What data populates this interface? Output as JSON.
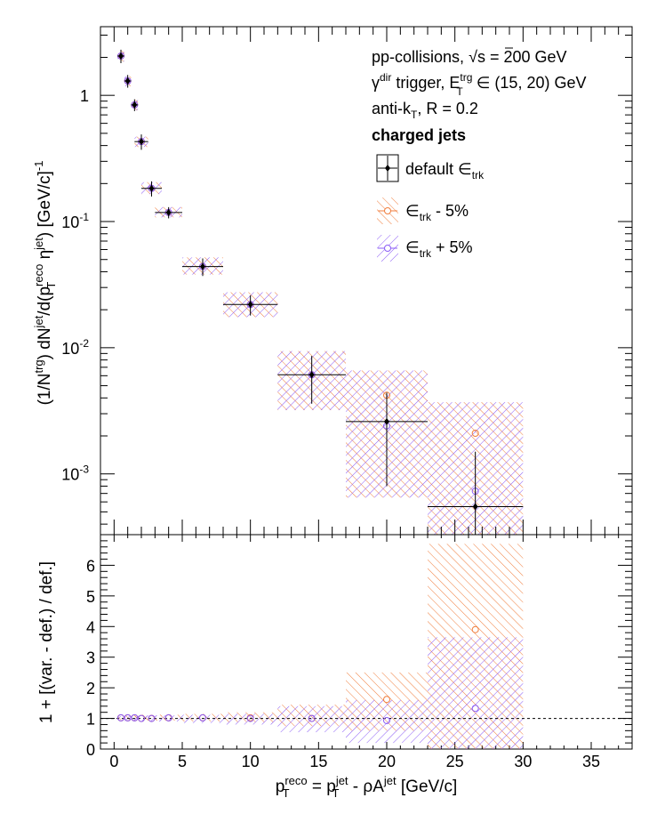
{
  "figure": {
    "info_lines": [
      "pp-collisions,",
      "= 200 GeV"
    ],
    "trigger_line": {
      "gamma": "γ",
      "sup_dir": "dir",
      "mid": " trigger, E",
      "sup_trg": "trg",
      "sub_T": "T",
      "rest": " ∈ (15, 20) GeV"
    },
    "algo_line": {
      "pre": "anti-k",
      "sub_T": "T",
      "rest": ", R = 0.2"
    },
    "sqrt_s_symbol": "√s",
    "jets_label": "charged jets",
    "legend": [
      {
        "label_main": "default ∈",
        "label_sub": "trk",
        "label_tail": "",
        "color": "#000000"
      },
      {
        "label_main": "∈",
        "label_sub": "trk",
        "label_tail": " - 5%",
        "color": "#f07d3c"
      },
      {
        "label_main": "∈",
        "label_sub": "trk",
        "label_tail": " + 5%",
        "color": "#8b5cf6"
      }
    ],
    "top_ylabel": "(1/N^trg) dN^jet/d(p_T^reco η^jet) [GeV/c]^-1",
    "bottom_ylabel": "1 + [(var. - def.) / def.]",
    "xlabel": "p_T^reco = p_T^jet - ρA^jet [GeV/c]"
  },
  "chart_data": [
    {
      "type": "scatter",
      "panel": "top",
      "yscale": "log",
      "xlim": [
        -1,
        38
      ],
      "ylim": [
        0.00033,
        3.5
      ],
      "y_tick_labels": [
        "10^-3",
        "10^-2",
        "10^-1",
        "1"
      ],
      "x_tick_labels": [
        "0",
        "5",
        "10",
        "15",
        "20",
        "25",
        "30",
        "35"
      ],
      "bins": [
        {
          "x": 0.5,
          "xerr": 0.25,
          "y": 2.05,
          "yerr": 0.25,
          "band_lo": 1.85,
          "band_hi": 2.25
        },
        {
          "x": 1.0,
          "xerr": 0.25,
          "y": 1.3,
          "yerr": 0.15,
          "band_lo": 1.18,
          "band_hi": 1.42
        },
        {
          "x": 1.5,
          "xerr": 0.25,
          "y": 0.84,
          "yerr": 0.09,
          "band_lo": 0.76,
          "band_hi": 0.92
        },
        {
          "x": 2.0,
          "xerr": 0.5,
          "y": 0.43,
          "yerr": 0.06,
          "band_lo": 0.39,
          "band_hi": 0.47
        },
        {
          "x": 2.75,
          "xerr": 0.75,
          "y": 0.183,
          "yerr": 0.025,
          "band_lo": 0.165,
          "band_hi": 0.205
        },
        {
          "x": 4.0,
          "xerr": 1.0,
          "y": 0.118,
          "yerr": 0.012,
          "band_lo": 0.108,
          "band_hi": 0.13
        },
        {
          "x": 6.5,
          "xerr": 1.5,
          "y": 0.044,
          "yerr": 0.007,
          "band_lo": 0.038,
          "band_hi": 0.052
        },
        {
          "x": 10.0,
          "xerr": 2.0,
          "y": 0.022,
          "yerr": 0.004,
          "band_lo": 0.0175,
          "band_hi": 0.0275
        },
        {
          "x": 14.5,
          "xerr": 2.5,
          "y": 0.0061,
          "yerr": 0.0025,
          "band_lo": 0.0032,
          "band_hi": 0.0094
        },
        {
          "x": 20.0,
          "xerr": 3.0,
          "y": 0.0026,
          "yerr": 0.0018,
          "band_lo": 0.00065,
          "band_hi": 0.0066
        },
        {
          "x": 26.5,
          "xerr": 3.5,
          "y": 0.00055,
          "yerr": 0.00095,
          "band_lo": 0.00033,
          "band_hi": 0.0037
        }
      ],
      "series": [
        {
          "name": "default ∈trk",
          "points": [
            2.05,
            1.3,
            0.84,
            0.43,
            0.183,
            0.118,
            0.044,
            0.022,
            0.0061,
            0.0026,
            0.00055
          ]
        },
        {
          "name": "∈trk - 5%",
          "points": [
            2.05,
            1.3,
            0.84,
            0.43,
            0.183,
            0.118,
            0.044,
            0.022,
            0.0061,
            0.0042,
            0.0021
          ]
        },
        {
          "name": "∈trk + 5%",
          "points": [
            2.05,
            1.3,
            0.84,
            0.43,
            0.183,
            0.118,
            0.044,
            0.022,
            0.0061,
            0.0024,
            0.00073
          ]
        }
      ]
    },
    {
      "type": "scatter",
      "panel": "bottom",
      "xlim": [
        -1,
        38
      ],
      "ylim": [
        0,
        7
      ],
      "y_tick_labels": [
        "0",
        "1",
        "2",
        "3",
        "4",
        "5",
        "6"
      ],
      "reference_line": 1,
      "bins": [
        {
          "x": 0.5,
          "xerr": 0.25,
          "minus": 1.02,
          "plus": 1.02,
          "minus_band": [
            0.96,
            1.1
          ],
          "plus_band": [
            0.92,
            1.08
          ]
        },
        {
          "x": 1.0,
          "xerr": 0.25,
          "minus": 1.02,
          "plus": 1.02,
          "minus_band": [
            0.96,
            1.1
          ],
          "plus_band": [
            0.92,
            1.08
          ]
        },
        {
          "x": 1.5,
          "xerr": 0.25,
          "minus": 1.02,
          "plus": 1.02,
          "minus_band": [
            0.96,
            1.1
          ],
          "plus_band": [
            0.92,
            1.08
          ]
        },
        {
          "x": 2.0,
          "xerr": 0.5,
          "minus": 1.0,
          "plus": 1.0,
          "minus_band": [
            0.95,
            1.1
          ],
          "plus_band": [
            0.9,
            1.08
          ]
        },
        {
          "x": 2.75,
          "xerr": 0.75,
          "minus": 1.0,
          "plus": 1.0,
          "minus_band": [
            0.93,
            1.12
          ],
          "plus_band": [
            0.9,
            1.1
          ]
        },
        {
          "x": 4.0,
          "xerr": 1.0,
          "minus": 1.02,
          "plus": 1.02,
          "minus_band": [
            0.93,
            1.12
          ],
          "plus_band": [
            0.9,
            1.1
          ]
        },
        {
          "x": 6.5,
          "xerr": 1.5,
          "minus": 1.02,
          "plus": 1.02,
          "minus_band": [
            0.9,
            1.15
          ],
          "plus_band": [
            0.85,
            1.12
          ]
        },
        {
          "x": 10.0,
          "xerr": 2.0,
          "minus": 1.02,
          "plus": 1.0,
          "minus_band": [
            0.88,
            1.2
          ],
          "plus_band": [
            0.8,
            1.15
          ]
        },
        {
          "x": 14.5,
          "xerr": 2.5,
          "minus": 1.0,
          "plus": 1.0,
          "minus_band": [
            0.75,
            1.45
          ],
          "plus_band": [
            0.55,
            1.4
          ]
        },
        {
          "x": 20.0,
          "xerr": 3.0,
          "minus": 1.62,
          "plus": 0.93,
          "minus_band": [
            0.6,
            2.5
          ],
          "plus_band": [
            0.2,
            1.6
          ]
        },
        {
          "x": 26.5,
          "xerr": 3.5,
          "minus": 3.9,
          "plus": 1.33,
          "minus_band": [
            0.0,
            6.7
          ],
          "plus_band": [
            0.0,
            3.65
          ]
        }
      ]
    }
  ]
}
